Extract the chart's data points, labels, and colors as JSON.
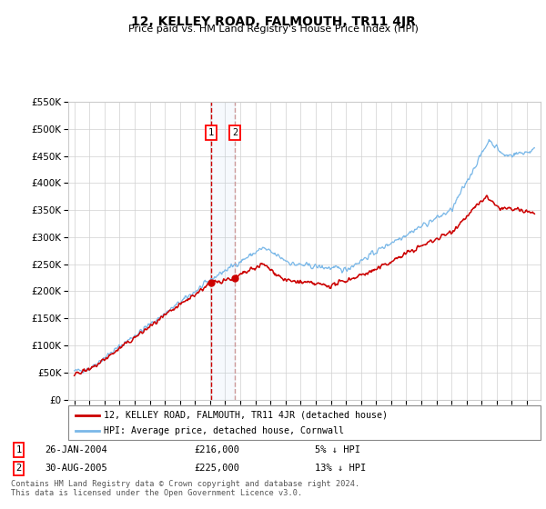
{
  "title": "12, KELLEY ROAD, FALMOUTH, TR11 4JR",
  "subtitle": "Price paid vs. HM Land Registry's House Price Index (HPI)",
  "legend_line1": "12, KELLEY ROAD, FALMOUTH, TR11 4JR (detached house)",
  "legend_line2": "HPI: Average price, detached house, Cornwall",
  "transaction1_date": "26-JAN-2004",
  "transaction1_price": "£216,000",
  "transaction1_hpi": "5% ↓ HPI",
  "transaction2_date": "30-AUG-2005",
  "transaction2_price": "£225,000",
  "transaction2_hpi": "13% ↓ HPI",
  "footnote": "Contains HM Land Registry data © Crown copyright and database right 2024.\nThis data is licensed under the Open Government Licence v3.0.",
  "hpi_color": "#7ab8e8",
  "price_color": "#cc0000",
  "vline1_color": "#cc0000",
  "vline2_color": "#cc9999",
  "ylim_min": 0,
  "ylim_max": 550000,
  "year_start": 1995,
  "year_end": 2025,
  "t1_year": 2004.07,
  "t2_year": 2005.66,
  "t1_price": 216000,
  "t2_price": 225000
}
